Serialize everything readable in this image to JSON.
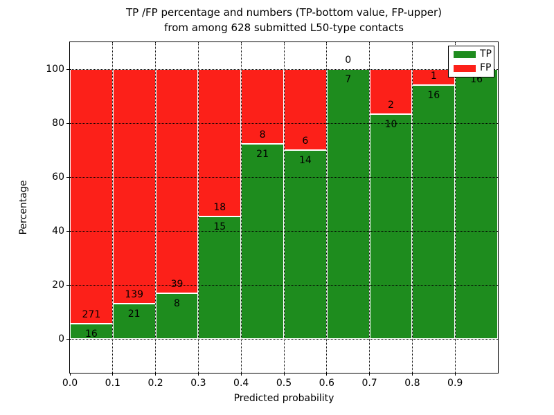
{
  "title": {
    "line1": "TP /FP percentage and numbers (TP-bottom value, FP-upper)",
    "line2": "from among 628 submitted L50-type contacts"
  },
  "axes": {
    "xlabel": "Predicted probability",
    "ylabel": "Percentage",
    "xticks": [
      0.0,
      0.1,
      0.2,
      0.3,
      0.4,
      0.5,
      0.6,
      0.7,
      0.8,
      0.9
    ],
    "xticklabels": [
      "0.0",
      "0.1",
      "0.2",
      "0.3",
      "0.4",
      "0.5",
      "0.6",
      "0.7",
      "0.8",
      "0.9"
    ],
    "yticks": [
      0,
      20,
      40,
      60,
      80,
      100
    ],
    "yticklabels": [
      "0",
      "20",
      "40",
      "60",
      "80",
      "100"
    ],
    "xlim": [
      0.0,
      1.0
    ],
    "ylim": [
      -12.5,
      110
    ],
    "grid": true,
    "grid_style": "dotted"
  },
  "legend": {
    "position": "upper right",
    "items": [
      {
        "label": "TP",
        "color": "#1e8c1e"
      },
      {
        "label": "FP",
        "color": "#fc2019"
      }
    ]
  },
  "chart_data": {
    "type": "bar",
    "stacked": true,
    "normalized_to_percent": true,
    "title": "TP /FP percentage and numbers (TP-bottom value, FP-upper) from among 628 submitted L50-type contacts",
    "xlabel": "Predicted probability",
    "ylabel": "Percentage",
    "total_contacts": 628,
    "bins": [
      "0.0-0.1",
      "0.1-0.2",
      "0.2-0.3",
      "0.3-0.4",
      "0.4-0.5",
      "0.5-0.6",
      "0.6-0.7",
      "0.7-0.8",
      "0.8-0.9",
      "0.9-1.0"
    ],
    "bin_start": [
      0.0,
      0.1,
      0.2,
      0.3,
      0.4,
      0.5,
      0.6,
      0.7,
      0.8,
      0.9
    ],
    "bin_width": 0.1,
    "series": [
      {
        "name": "TP",
        "color": "#1e8c1e",
        "counts": [
          16,
          21,
          8,
          15,
          21,
          14,
          7,
          10,
          16,
          16
        ]
      },
      {
        "name": "FP",
        "color": "#fc2019",
        "counts": [
          271,
          139,
          39,
          18,
          8,
          6,
          0,
          2,
          1,
          0
        ]
      }
    ],
    "tp_percent_by_bin": [
      5.6,
      13.1,
      17.0,
      45.5,
      72.4,
      70.0,
      100.0,
      83.3,
      94.1,
      100.0
    ],
    "ylim": [
      -12.5,
      110
    ],
    "legend_position": "upper right"
  }
}
